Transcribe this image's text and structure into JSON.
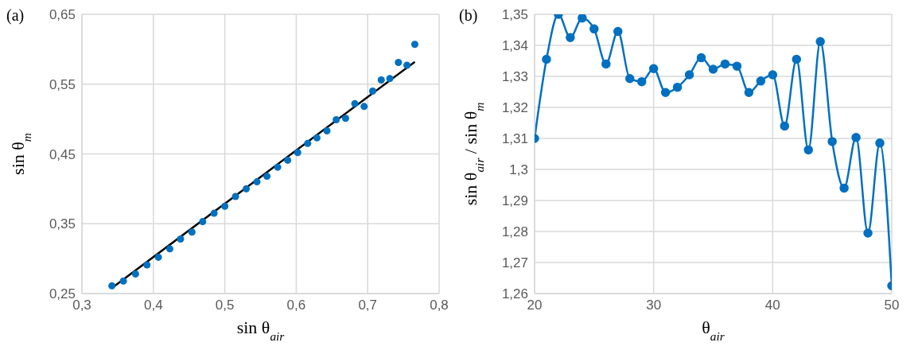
{
  "chart_data": [
    {
      "type": "scatter",
      "title": "(a)",
      "xlabel": "sin θ$_{air}$",
      "ylabel": "sin θ$_{m}$",
      "grid": true,
      "marker": "circle",
      "xlim": [
        0.3,
        0.8
      ],
      "xticks": [
        {
          "value": 0.3,
          "label": "0,3"
        },
        {
          "value": 0.4,
          "label": "0,4"
        },
        {
          "value": 0.5,
          "label": "0,5"
        },
        {
          "value": 0.6,
          "label": "0,6"
        },
        {
          "value": 0.7,
          "label": "0,7"
        },
        {
          "value": 0.8,
          "label": "0,8"
        }
      ],
      "ylim": [
        0.25,
        0.65
      ],
      "yticks": [
        {
          "value": 0.25,
          "label": "0,25"
        },
        {
          "value": 0.35,
          "label": "0,35"
        },
        {
          "value": 0.45,
          "label": "0,45"
        },
        {
          "value": 0.55,
          "label": "0,55"
        },
        {
          "value": 0.65,
          "label": "0,65"
        }
      ],
      "x": [
        0.342,
        0.358,
        0.375,
        0.391,
        0.407,
        0.423,
        0.438,
        0.454,
        0.469,
        0.485,
        0.5,
        0.515,
        0.53,
        0.545,
        0.559,
        0.574,
        0.588,
        0.602,
        0.616,
        0.629,
        0.643,
        0.656,
        0.669,
        0.682,
        0.695,
        0.707,
        0.719,
        0.731,
        0.743,
        0.755,
        0.766
      ],
      "series": [
        {
          "color": "#0070c0",
          "values": [
            0.261,
            0.268,
            0.278,
            0.291,
            0.302,
            0.314,
            0.328,
            0.338,
            0.353,
            0.365,
            0.375,
            0.389,
            0.4,
            0.41,
            0.418,
            0.431,
            0.441,
            0.452,
            0.465,
            0.473,
            0.483,
            0.499,
            0.501,
            0.522,
            0.518,
            0.54,
            0.556,
            0.558,
            0.581,
            0.577,
            0.607
          ]
        },
        {
          "type": "line",
          "color": "#000000",
          "marker": "none",
          "line_style": "solid",
          "x": [
            0.342,
            0.766
          ],
          "values": [
            0.258,
            0.582
          ]
        }
      ]
    },
    {
      "type": "line",
      "title": "(b)",
      "xlabel": "θ$_{air}$",
      "ylabel": "sin θ$_{air}$ / sin θ$_{m}$",
      "grid": true,
      "marker": "circle",
      "line_style": "solid",
      "xlim": [
        20,
        50
      ],
      "xticks": [
        20,
        30,
        40,
        50
      ],
      "ylim": [
        1.26,
        1.35
      ],
      "yticks": [
        {
          "value": 1.26,
          "label": "1,26"
        },
        {
          "value": 1.27,
          "label": "1,27"
        },
        {
          "value": 1.28,
          "label": "1,28"
        },
        {
          "value": 1.29,
          "label": "1,29"
        },
        {
          "value": 1.3,
          "label": "1,3"
        },
        {
          "value": 1.31,
          "label": "1,31"
        },
        {
          "value": 1.32,
          "label": "1,32"
        },
        {
          "value": 1.33,
          "label": "1,33"
        },
        {
          "value": 1.34,
          "label": "1,34"
        },
        {
          "value": 1.35,
          "label": "1,35"
        }
      ],
      "x": [
        20,
        21,
        22,
        23,
        24,
        25,
        26,
        27,
        28,
        29,
        30,
        31,
        32,
        33,
        34,
        35,
        36,
        37,
        38,
        39,
        40,
        41,
        42,
        43,
        44,
        45,
        46,
        47,
        48,
        49,
        50
      ],
      "series": [
        {
          "color": "#0070c0",
          "values": [
            1.31,
            1.3355,
            1.35,
            1.3425,
            1.3488,
            1.3453,
            1.334,
            1.3445,
            1.3293,
            1.3283,
            1.3325,
            1.3248,
            1.3265,
            1.3305,
            1.336,
            1.3323,
            1.334,
            1.3333,
            1.3248,
            1.3285,
            1.3305,
            1.314,
            1.3355,
            1.3063,
            1.3412,
            1.309,
            1.294,
            1.3103,
            1.2795,
            1.3085,
            1.2625
          ]
        }
      ]
    }
  ]
}
